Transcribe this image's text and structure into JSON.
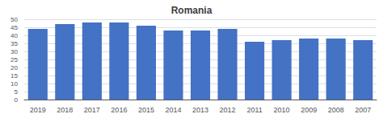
{
  "chart_data": {
    "type": "bar",
    "title": "Romania",
    "categories": [
      "2019",
      "2018",
      "2017",
      "2016",
      "2015",
      "2014",
      "2013",
      "2012",
      "2011",
      "2010",
      "2009",
      "2008",
      "2007"
    ],
    "values": [
      44,
      47,
      48,
      48,
      46,
      43,
      43,
      44,
      36,
      37,
      38,
      38,
      37
    ],
    "color": "#4472C4",
    "ylim": [
      0,
      50
    ],
    "yticks": [
      0,
      5,
      10,
      15,
      20,
      25,
      30,
      35,
      40,
      45,
      50
    ],
    "grid": true
  }
}
